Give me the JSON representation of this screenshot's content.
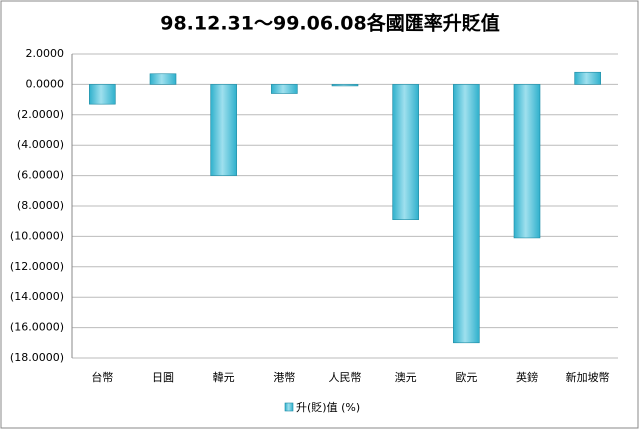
{
  "chart_data": {
    "type": "bar",
    "title": "98.12.31～99.06.08各國匯率升貶值",
    "categories": [
      "台幣",
      "日圓",
      "韓元",
      "港幣",
      "人民幣",
      "澳元",
      "歐元",
      "英鎊",
      "新加坡幣"
    ],
    "series": [
      {
        "name": "升(貶)值 (%)",
        "color": "#2fb0cc",
        "values": [
          -1.3,
          0.7,
          -6.0,
          -0.6,
          -0.1,
          -8.9,
          -17.0,
          -10.1,
          0.8
        ]
      }
    ],
    "ylim": [
      -18,
      2
    ],
    "yticks": [
      {
        "value": 2,
        "label": "2.0000"
      },
      {
        "value": 0,
        "label": "0.0000"
      },
      {
        "value": -2,
        "label": "(2.0000)"
      },
      {
        "value": -4,
        "label": "(4.0000)"
      },
      {
        "value": -6,
        "label": "(6.0000)"
      },
      {
        "value": -8,
        "label": "(8.0000)"
      },
      {
        "value": -10,
        "label": "(10.0000)"
      },
      {
        "value": -12,
        "label": "(12.0000)"
      },
      {
        "value": -14,
        "label": "(14.0000)"
      },
      {
        "value": -16,
        "label": "(16.0000)"
      },
      {
        "value": -18,
        "label": "(18.0000)"
      }
    ],
    "grid": true,
    "legend": "bottom"
  }
}
